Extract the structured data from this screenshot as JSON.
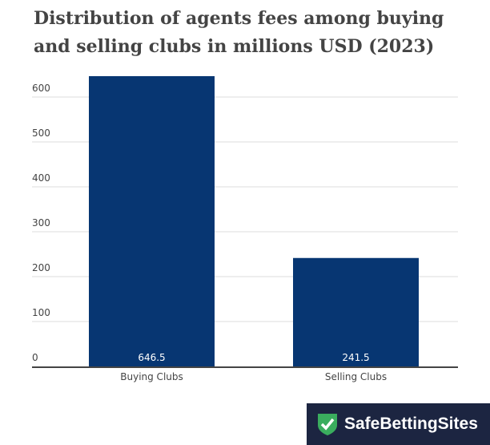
{
  "chart_data": {
    "type": "bar",
    "title": "Distribution of agents fees among buying and selling clubs in millions USD (2023)",
    "categories": [
      "Buying Clubs",
      "Selling Clubs"
    ],
    "values": [
      646.5,
      241.5
    ],
    "value_labels": [
      "646.5",
      "241.5"
    ],
    "yticks": [
      0,
      100,
      200,
      300,
      400,
      500,
      600
    ],
    "ylim": [
      0,
      650
    ],
    "xlabel": "",
    "ylabel": "",
    "grid": true,
    "bar_color": "#073672"
  },
  "brand": {
    "name": "SafeBettingSites",
    "bg": "#1c2541",
    "shield": "#3aad5e"
  }
}
